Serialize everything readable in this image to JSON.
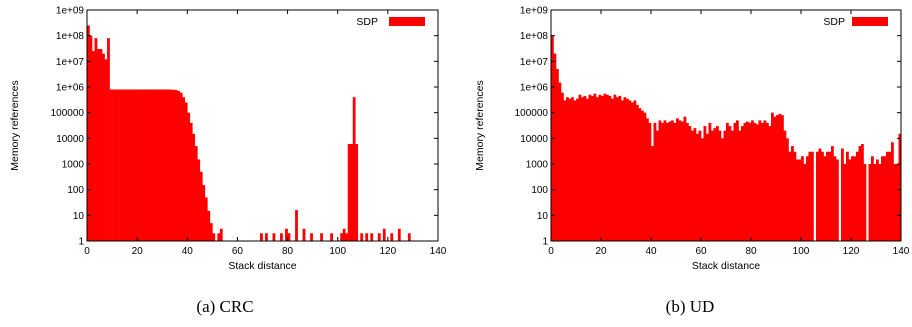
{
  "chart_data": [
    {
      "type": "bar",
      "caption": "(a) CRC",
      "xlabel": "Stack distance",
      "ylabel": "Memory references",
      "xlim": [
        0,
        140
      ],
      "ylim": [
        1,
        1000000000
      ],
      "yscale": "log",
      "grid": false,
      "legend_position": "top-right",
      "xticks": [
        "0",
        "20",
        "40",
        "60",
        "80",
        "100",
        "120",
        "140"
      ],
      "yticks": [
        "1",
        "10",
        "100",
        "1000",
        "10000",
        "100000",
        "1e+06",
        "1e+07",
        "1e+08",
        "1e+09"
      ],
      "series": [
        {
          "name": "SDP",
          "color": "#ff0000",
          "x": [
            0,
            1,
            2,
            3,
            4,
            5,
            6,
            7,
            8,
            9,
            10,
            11,
            12,
            13,
            14,
            15,
            16,
            17,
            18,
            19,
            20,
            21,
            22,
            23,
            24,
            25,
            26,
            27,
            28,
            29,
            30,
            31,
            32,
            33,
            34,
            35,
            36,
            37,
            38,
            39,
            40,
            41,
            42,
            43,
            44,
            45,
            46,
            47,
            48,
            49,
            50,
            52,
            53,
            57,
            62,
            66,
            69,
            71,
            74,
            77,
            79,
            80,
            83,
            86,
            89,
            93,
            97,
            101,
            102,
            103,
            104,
            105,
            106,
            107,
            109,
            111,
            113,
            116,
            118,
            121,
            124,
            128
          ],
          "values": [
            250000000,
            100000000,
            25000000,
            80000000,
            30000000,
            30000000,
            20000000,
            12000000,
            80000000,
            800000,
            800000,
            800000,
            800000,
            800000,
            800000,
            800000,
            800000,
            800000,
            800000,
            800000,
            800000,
            800000,
            800000,
            800000,
            800000,
            800000,
            800000,
            800000,
            800000,
            800000,
            800000,
            800000,
            800000,
            790000,
            780000,
            760000,
            700000,
            600000,
            400000,
            250000,
            100000,
            40000,
            15000,
            5000,
            1500,
            500,
            150,
            50,
            15,
            5,
            2,
            2,
            3,
            1,
            1,
            1,
            2,
            2,
            2,
            2,
            3,
            2,
            16,
            3,
            2,
            2,
            2,
            2,
            3,
            2,
            6000,
            6000,
            400000,
            6000,
            2,
            2,
            2,
            2,
            3,
            2,
            3,
            2
          ]
        }
      ]
    },
    {
      "type": "bar",
      "caption": "(b) UD",
      "xlabel": "Stack distance",
      "ylabel": "Memory references",
      "xlim": [
        0,
        140
      ],
      "ylim": [
        1,
        1000000000
      ],
      "yscale": "log",
      "grid": false,
      "legend_position": "top-right",
      "xticks": [
        "0",
        "20",
        "40",
        "60",
        "80",
        "100",
        "120",
        "140"
      ],
      "yticks": [
        "1",
        "10",
        "100",
        "1000",
        "10000",
        "100000",
        "1e+06",
        "1e+07",
        "1e+08",
        "1e+09"
      ],
      "series": [
        {
          "name": "SDP",
          "color": "#ff0000",
          "x": [
            0,
            1,
            2,
            3,
            4,
            5,
            6,
            7,
            8,
            9,
            10,
            11,
            12,
            13,
            14,
            15,
            16,
            17,
            18,
            19,
            20,
            21,
            22,
            23,
            24,
            25,
            26,
            27,
            28,
            29,
            30,
            31,
            32,
            33,
            34,
            35,
            36,
            37,
            38,
            39,
            40,
            41,
            42,
            43,
            44,
            45,
            46,
            47,
            48,
            49,
            50,
            51,
            52,
            53,
            54,
            55,
            56,
            57,
            58,
            59,
            60,
            61,
            62,
            63,
            64,
            65,
            66,
            67,
            68,
            69,
            70,
            71,
            72,
            73,
            74,
            75,
            76,
            77,
            78,
            79,
            80,
            81,
            82,
            83,
            84,
            85,
            86,
            87,
            88,
            89,
            90,
            91,
            92,
            93,
            94,
            95,
            96,
            97,
            98,
            99,
            100,
            101,
            102,
            103,
            104,
            105,
            106,
            107,
            108,
            109,
            110,
            111,
            112,
            113,
            114,
            115,
            116,
            117,
            118,
            119,
            120,
            121,
            122,
            123,
            124,
            125,
            126,
            127,
            128,
            129,
            130,
            131,
            132,
            133,
            134,
            135,
            136,
            137,
            138,
            139
          ],
          "values": [
            100000000,
            20000000,
            5000000,
            1500000,
            600000,
            300000,
            400000,
            350000,
            400000,
            300000,
            350000,
            500000,
            400000,
            450000,
            350000,
            500000,
            450000,
            550000,
            400000,
            500000,
            450000,
            550000,
            500000,
            450000,
            350000,
            500000,
            400000,
            450000,
            300000,
            400000,
            350000,
            300000,
            250000,
            300000,
            200000,
            150000,
            120000,
            100000,
            60000,
            40000,
            5000,
            40000,
            20000,
            50000,
            40000,
            50000,
            40000,
            45000,
            50000,
            40000,
            60000,
            50000,
            45000,
            70000,
            40000,
            30000,
            20000,
            25000,
            15000,
            20000,
            10000,
            30000,
            15000,
            40000,
            20000,
            25000,
            30000,
            20000,
            10000,
            20000,
            40000,
            30000,
            20000,
            40000,
            50000,
            20000,
            30000,
            40000,
            45000,
            40000,
            50000,
            40000,
            35000,
            50000,
            40000,
            50000,
            40000,
            30000,
            100000,
            70000,
            80000,
            90000,
            80000,
            20000,
            10000,
            3000,
            5000,
            3000,
            1500,
            1500,
            2000,
            1000,
            2000,
            3000,
            3000,
            1,
            3000,
            4000,
            3000,
            2000,
            3000,
            3000,
            5000,
            2000,
            1500,
            1,
            4000,
            1000,
            3000,
            1500,
            2000,
            2000,
            3000,
            5000,
            6000,
            1000,
            1,
            1000,
            2000,
            1000,
            1500,
            1000,
            2000,
            2000,
            3000,
            3000,
            7000,
            1000,
            1000,
            15000
          ]
        }
      ]
    }
  ]
}
